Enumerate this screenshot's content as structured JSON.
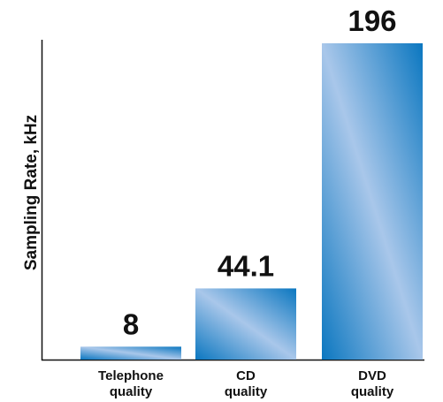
{
  "chart_data": {
    "type": "bar",
    "ylabel": "Sampling Rate, kHz",
    "xlabel": "",
    "categories": [
      [
        "Telephone",
        "quality"
      ],
      [
        "CD",
        "quality"
      ],
      [
        "DVD",
        "quality"
      ]
    ],
    "values": [
      8,
      44.1,
      196
    ],
    "data_labels": [
      "8",
      "44.1",
      "196"
    ],
    "ylim": [
      0,
      196
    ],
    "grid": false,
    "colors": {
      "bar_dark": "#0b77c0",
      "bar_light": "#a9c7ea",
      "axis": "#111111",
      "text": "#111111"
    }
  }
}
